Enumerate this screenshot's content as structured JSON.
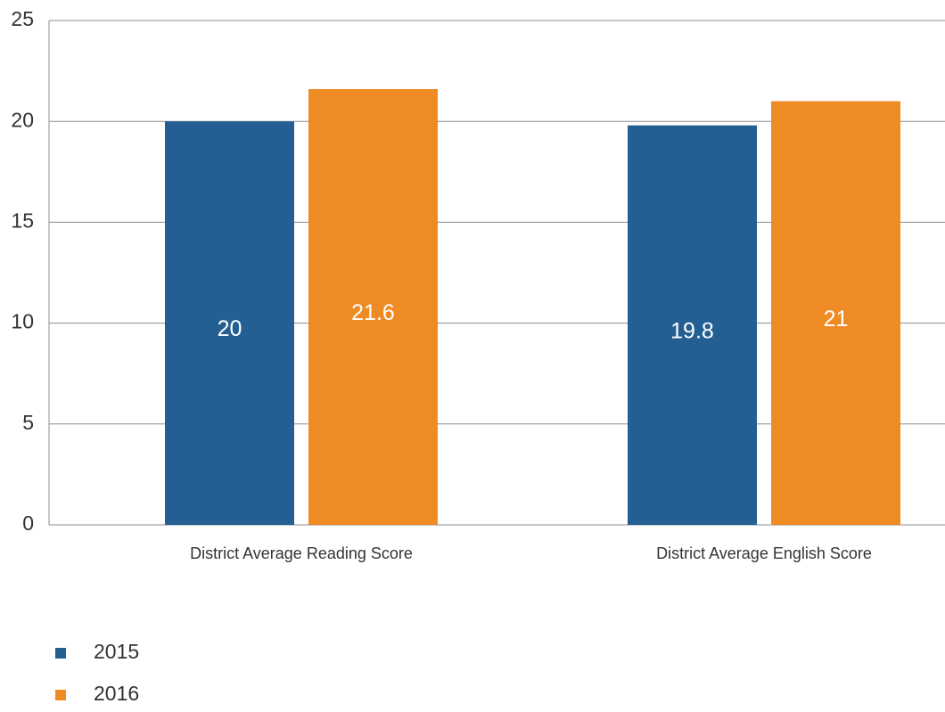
{
  "chart_data": {
    "type": "bar",
    "categories": [
      "District Average Reading Score",
      "District Average English Score"
    ],
    "series": [
      {
        "name": "2015",
        "color": "#235f92",
        "values": [
          20,
          19.8
        ]
      },
      {
        "name": "2016",
        "color": "#ef8b24",
        "values": [
          21.6,
          21
        ]
      }
    ],
    "ylim": [
      0,
      25
    ],
    "yticks": [
      0,
      5,
      10,
      15,
      20,
      25
    ],
    "grid": true,
    "legend": "bottom-left"
  }
}
